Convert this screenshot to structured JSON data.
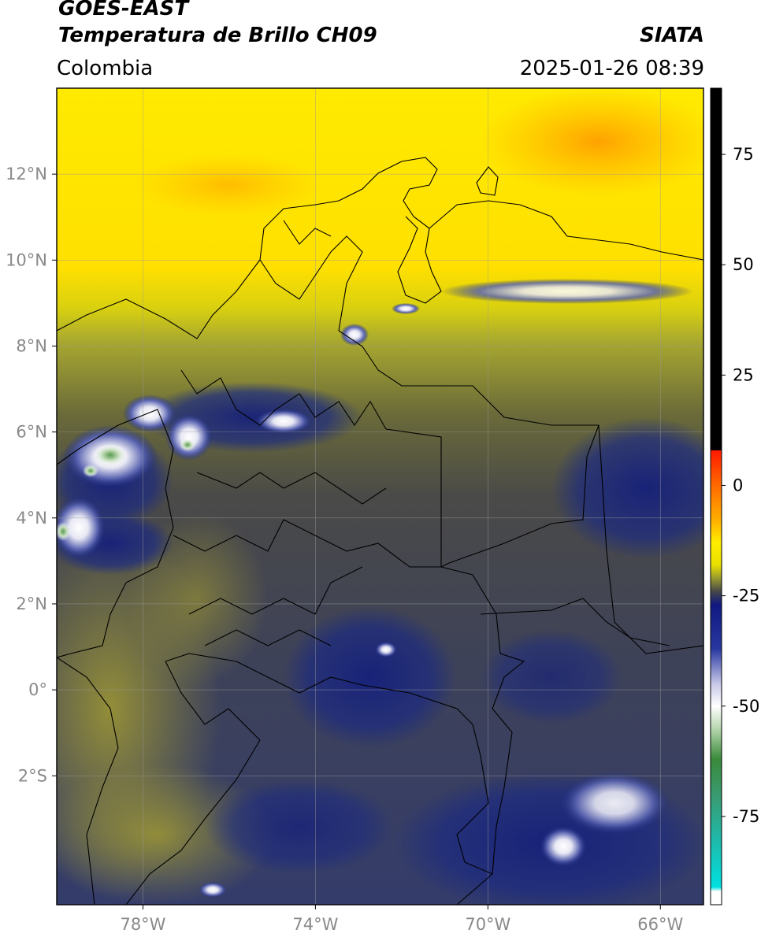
{
  "header": {
    "satellite": "GOES-EAST",
    "product": "Temperatura de Brillo CH09",
    "region": "Colombia",
    "agency": "SIATA",
    "timestamp": "2025-01-26 08:39"
  },
  "map": {
    "lon_range": [
      -80,
      -65
    ],
    "lat_range": [
      -5,
      14
    ],
    "lat_ticks": [
      {
        "value": 12,
        "label": "12°N"
      },
      {
        "value": 10,
        "label": "10°N"
      },
      {
        "value": 8,
        "label": "8°N"
      },
      {
        "value": 6,
        "label": "6°N"
      },
      {
        "value": 4,
        "label": "4°N"
      },
      {
        "value": 2,
        "label": "2°N"
      },
      {
        "value": 0,
        "label": "0°"
      },
      {
        "value": -2,
        "label": "2°S"
      }
    ],
    "lon_ticks": [
      {
        "value": -78,
        "label": "78°W"
      },
      {
        "value": -74,
        "label": "74°W"
      },
      {
        "value": -70,
        "label": "70°W"
      },
      {
        "value": -66,
        "label": "66°W"
      }
    ],
    "colors": {
      "warm": "#ffea00",
      "hot": "#ff9a00",
      "olive": "#a8a830",
      "gray": "#484848",
      "navy": "#1c2a80",
      "cold": "#ffffff",
      "green": "#3c8a3c"
    }
  },
  "colorbar": {
    "range": [
      -95,
      90
    ],
    "ticks": [
      {
        "value": 75,
        "label": "75"
      },
      {
        "value": 50,
        "label": "50"
      },
      {
        "value": 25,
        "label": "25"
      },
      {
        "value": 0,
        "label": "0"
      },
      {
        "value": -25,
        "label": "-25"
      },
      {
        "value": -50,
        "label": "-50"
      },
      {
        "value": -75,
        "label": "-75"
      }
    ],
    "stops": [
      {
        "value": 90,
        "color": "#000000"
      },
      {
        "value": 8,
        "color": "#000000"
      },
      {
        "value": 7.9,
        "color": "#ff1a00"
      },
      {
        "value": 0,
        "color": "#ff6a00"
      },
      {
        "value": -8,
        "color": "#ffb000"
      },
      {
        "value": -13,
        "color": "#ffee00"
      },
      {
        "value": -18,
        "color": "#e8e000"
      },
      {
        "value": -21,
        "color": "#9a9a30"
      },
      {
        "value": -24,
        "color": "#484848"
      },
      {
        "value": -27,
        "color": "#101880"
      },
      {
        "value": -37,
        "color": "#2838a0"
      },
      {
        "value": -45,
        "color": "#c8c8e8"
      },
      {
        "value": -50,
        "color": "#ffffff"
      },
      {
        "value": -55,
        "color": "#b8d8b0"
      },
      {
        "value": -62,
        "color": "#3a8a3a"
      },
      {
        "value": -70,
        "color": "#3a9a70"
      },
      {
        "value": -80,
        "color": "#20b8a8"
      },
      {
        "value": -91,
        "color": "#00e0e0"
      },
      {
        "value": -92,
        "color": "#ffffff"
      },
      {
        "value": -95,
        "color": "#ffffff"
      }
    ]
  }
}
